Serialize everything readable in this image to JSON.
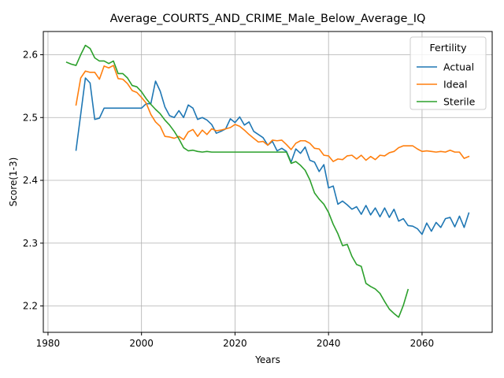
{
  "chart_data": {
    "type": "line",
    "title": "Average_COURTS_AND_CRIME_Male_Below_Average_IQ",
    "xlabel": "Years",
    "ylabel": "Score(1-3)",
    "xlim": [
      1979,
      2075
    ],
    "ylim": [
      2.158,
      2.637
    ],
    "xticks": [
      1980,
      2000,
      2020,
      2040,
      2060
    ],
    "xtick_labels": [
      "1980",
      "2000",
      "2020",
      "2040",
      "2060"
    ],
    "yticks": [
      2.2,
      2.3,
      2.4,
      2.5,
      2.6
    ],
    "ytick_labels": [
      "2.2",
      "2.3",
      "2.4",
      "2.5",
      "2.6"
    ],
    "grid": true,
    "legend": {
      "title": "Fertility",
      "position": "top-right"
    },
    "series": [
      {
        "name": "Actual",
        "color": "#1f77b4",
        "x": [
          1986,
          1987,
          1988,
          1989,
          1990,
          1991,
          1992,
          1993,
          1994,
          1995,
          1996,
          1997,
          1998,
          1999,
          2000,
          2001,
          2002,
          2003,
          2004,
          2005,
          2006,
          2007,
          2008,
          2009,
          2010,
          2011,
          2012,
          2013,
          2014,
          2015,
          2016,
          2017,
          2018,
          2019,
          2020,
          2021,
          2022,
          2023,
          2024,
          2025,
          2026,
          2027,
          2028,
          2029,
          2030,
          2031,
          2032,
          2033,
          2034,
          2035,
          2036,
          2037,
          2038,
          2039,
          2040,
          2041,
          2042,
          2043,
          2044,
          2045,
          2046,
          2047,
          2048,
          2049,
          2050,
          2051,
          2052,
          2053,
          2054,
          2055,
          2056,
          2057,
          2058,
          2059,
          2060,
          2061,
          2062,
          2063,
          2064,
          2065,
          2066,
          2067,
          2068,
          2069,
          2070
        ],
        "values": [
          2.448,
          2.505,
          2.563,
          2.555,
          2.497,
          2.499,
          2.515,
          2.515,
          2.515,
          2.515,
          2.515,
          2.515,
          2.515,
          2.515,
          2.515,
          2.522,
          2.522,
          2.558,
          2.542,
          2.517,
          2.503,
          2.5,
          2.511,
          2.5,
          2.52,
          2.515,
          2.497,
          2.5,
          2.496,
          2.489,
          2.475,
          2.478,
          2.482,
          2.498,
          2.492,
          2.501,
          2.488,
          2.493,
          2.478,
          2.473,
          2.468,
          2.456,
          2.462,
          2.447,
          2.451,
          2.446,
          2.429,
          2.45,
          2.443,
          2.453,
          2.432,
          2.429,
          2.414,
          2.425,
          2.388,
          2.391,
          2.362,
          2.367,
          2.361,
          2.354,
          2.358,
          2.346,
          2.36,
          2.345,
          2.356,
          2.342,
          2.356,
          2.341,
          2.354,
          2.335,
          2.339,
          2.328,
          2.327,
          2.323,
          2.314,
          2.332,
          2.319,
          2.333,
          2.325,
          2.339,
          2.341,
          2.326,
          2.343,
          2.325,
          2.348
        ]
      },
      {
        "name": "Ideal",
        "color": "#ff7f0e",
        "x": [
          1986,
          1987,
          1988,
          1989,
          1990,
          1991,
          1992,
          1993,
          1994,
          1995,
          1996,
          1997,
          1998,
          1999,
          2000,
          2001,
          2002,
          2003,
          2004,
          2005,
          2006,
          2007,
          2008,
          2009,
          2010,
          2011,
          2012,
          2013,
          2014,
          2015,
          2016,
          2017,
          2018,
          2019,
          2020,
          2021,
          2022,
          2023,
          2024,
          2025,
          2026,
          2027,
          2028,
          2029,
          2030,
          2031,
          2032,
          2033,
          2034,
          2035,
          2036,
          2037,
          2038,
          2039,
          2040,
          2041,
          2042,
          2043,
          2044,
          2045,
          2046,
          2047,
          2048,
          2049,
          2050,
          2051,
          2052,
          2053,
          2054,
          2055,
          2056,
          2057,
          2058,
          2059,
          2060,
          2061,
          2062,
          2063,
          2064,
          2065,
          2066,
          2067,
          2068,
          2069,
          2070
        ],
        "values": [
          2.52,
          2.563,
          2.574,
          2.572,
          2.572,
          2.561,
          2.582,
          2.579,
          2.583,
          2.562,
          2.561,
          2.554,
          2.543,
          2.54,
          2.532,
          2.523,
          2.505,
          2.493,
          2.486,
          2.47,
          2.469,
          2.467,
          2.47,
          2.465,
          2.477,
          2.481,
          2.47,
          2.48,
          2.473,
          2.482,
          2.479,
          2.48,
          2.482,
          2.484,
          2.489,
          2.486,
          2.48,
          2.473,
          2.467,
          2.461,
          2.462,
          2.456,
          2.464,
          2.463,
          2.464,
          2.457,
          2.449,
          2.459,
          2.463,
          2.463,
          2.459,
          2.451,
          2.45,
          2.44,
          2.439,
          2.43,
          2.434,
          2.433,
          2.439,
          2.44,
          2.434,
          2.44,
          2.432,
          2.438,
          2.433,
          2.44,
          2.439,
          2.444,
          2.446,
          2.452,
          2.455,
          2.455,
          2.455,
          2.45,
          2.446,
          2.447,
          2.446,
          2.445,
          2.446,
          2.445,
          2.448,
          2.445,
          2.445,
          2.435,
          2.438
        ]
      },
      {
        "name": "Sterile",
        "color": "#2ca02c",
        "x": [
          1984,
          1985,
          1986,
          1987,
          1988,
          1989,
          1990,
          1991,
          1992,
          1993,
          1994,
          1995,
          1996,
          1997,
          1998,
          1999,
          2000,
          2001,
          2002,
          2003,
          2004,
          2005,
          2006,
          2007,
          2008,
          2009,
          2010,
          2011,
          2012,
          2013,
          2014,
          2015,
          2016,
          2017,
          2018,
          2019,
          2020,
          2021,
          2022,
          2023,
          2024,
          2025,
          2026,
          2027,
          2028,
          2029,
          2030,
          2031,
          2032,
          2033,
          2034,
          2035,
          2036,
          2037,
          2038,
          2039,
          2040,
          2041,
          2042,
          2043,
          2044,
          2045,
          2046,
          2047,
          2048,
          2049,
          2050,
          2051,
          2052,
          2053,
          2054,
          2055,
          2056,
          2057
        ],
        "values": [
          2.588,
          2.585,
          2.583,
          2.6,
          2.615,
          2.61,
          2.595,
          2.59,
          2.59,
          2.586,
          2.59,
          2.57,
          2.57,
          2.563,
          2.551,
          2.549,
          2.541,
          2.53,
          2.521,
          2.513,
          2.506,
          2.496,
          2.488,
          2.478,
          2.466,
          2.452,
          2.447,
          2.448,
          2.446,
          2.445,
          2.446,
          2.445,
          2.445,
          2.445,
          2.445,
          2.445,
          2.445,
          2.445,
          2.445,
          2.445,
          2.445,
          2.445,
          2.445,
          2.445,
          2.445,
          2.445,
          2.445,
          2.445,
          2.427,
          2.43,
          2.424,
          2.416,
          2.401,
          2.38,
          2.37,
          2.362,
          2.349,
          2.33,
          2.315,
          2.296,
          2.298,
          2.279,
          2.266,
          2.263,
          2.236,
          2.231,
          2.227,
          2.22,
          2.207,
          2.195,
          2.188,
          2.182,
          2.201,
          2.226
        ]
      }
    ]
  }
}
